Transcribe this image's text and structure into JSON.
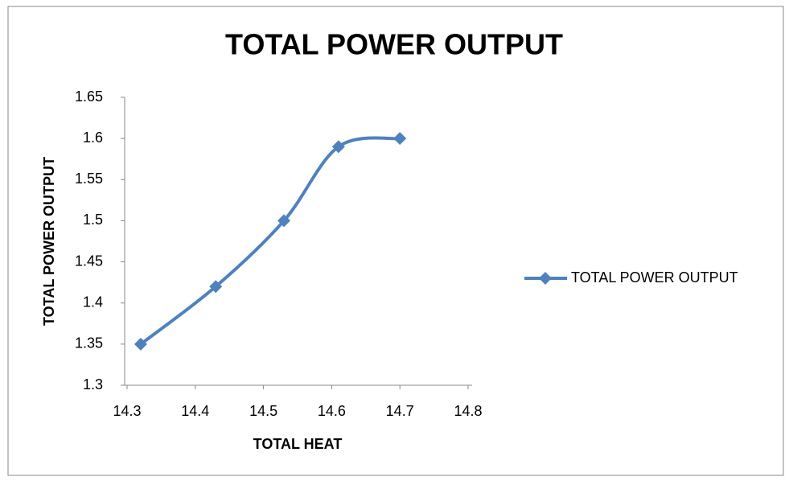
{
  "chart_data": {
    "type": "line",
    "title": "TOTAL POWER OUTPUT",
    "xlabel": "TOTAL HEAT",
    "ylabel": "TOTAL POWER OUTPUT",
    "x": [
      14.32,
      14.43,
      14.53,
      14.61,
      14.7
    ],
    "series": [
      {
        "name": "TOTAL POWER OUTPUT",
        "color": "#4f81bd",
        "values": [
          1.35,
          1.42,
          1.5,
          1.59,
          1.6
        ]
      }
    ],
    "xlim": [
      14.3,
      14.8
    ],
    "xticks": [
      14.3,
      14.4,
      14.5,
      14.6,
      14.7,
      14.8
    ],
    "ylim": [
      1.3,
      1.65
    ],
    "yticks": [
      1.3,
      1.35,
      1.4,
      1.45,
      1.5,
      1.55,
      1.6,
      1.65
    ],
    "grid": false,
    "legend": "right",
    "smooth": true,
    "marker": "diamond"
  }
}
